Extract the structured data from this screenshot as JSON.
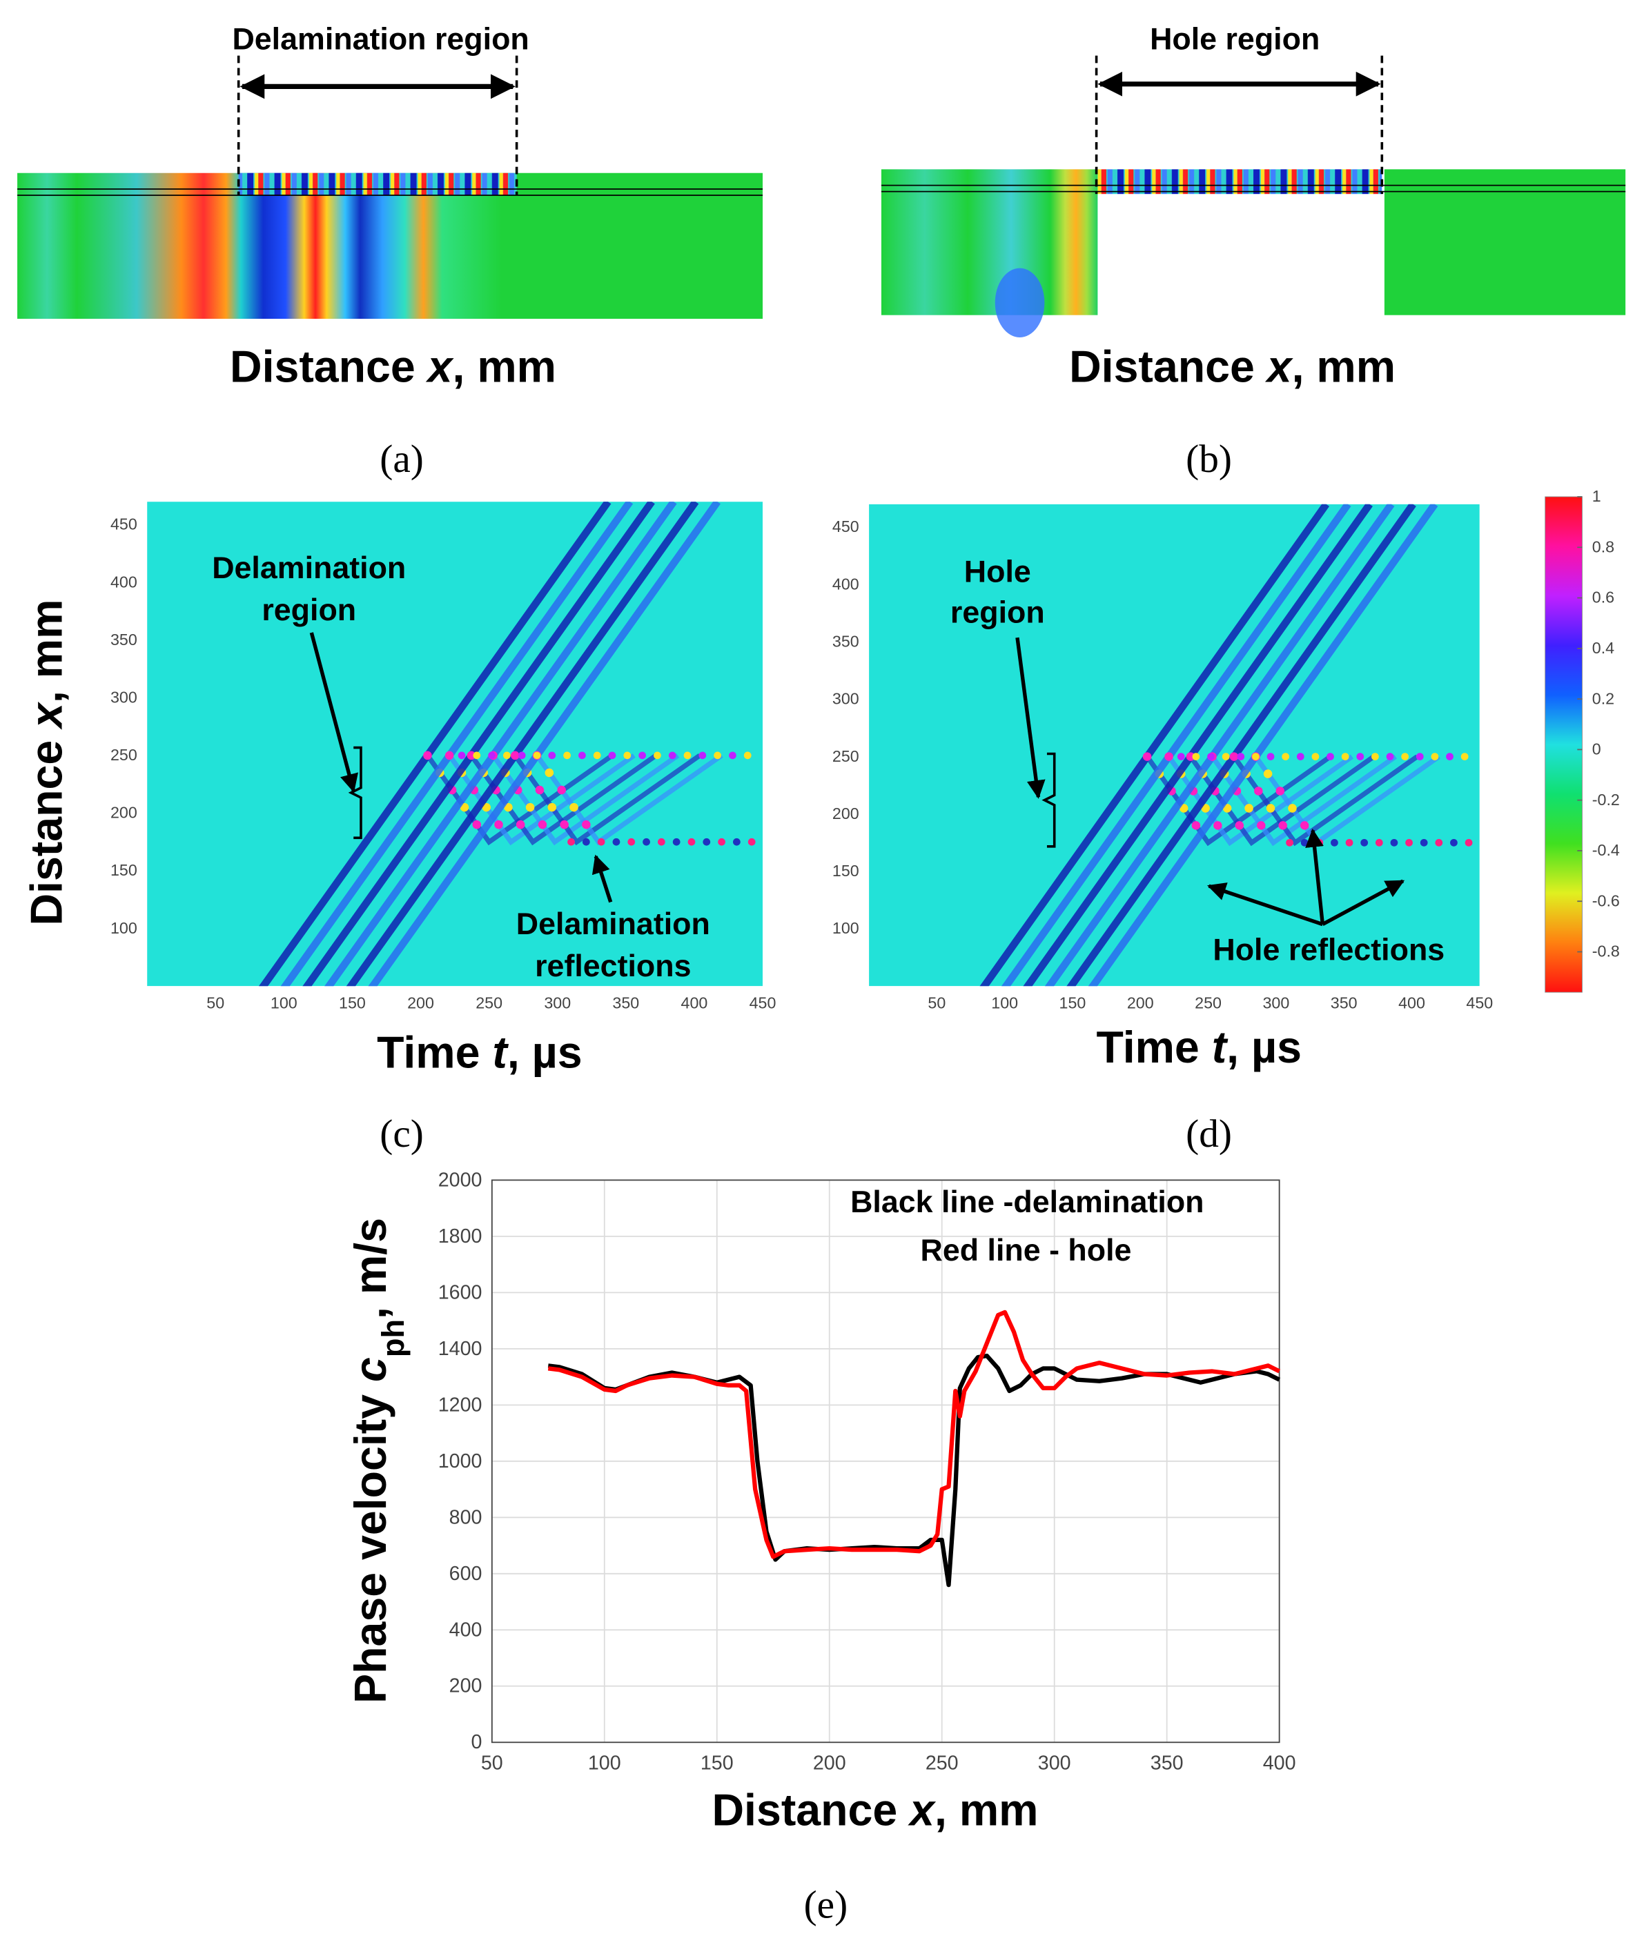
{
  "chart_data": [
    {
      "type": "field",
      "annotation": "Delamination region",
      "xlabel": [
        "Distance ",
        "x",
        ", mm"
      ],
      "panel": "(a)"
    },
    {
      "type": "field",
      "annotation": "Hole region",
      "xlabel": [
        "Distance ",
        "x",
        ", mm"
      ],
      "panel": "(b)"
    },
    {
      "type": "heatmap",
      "xlim": [
        0,
        450
      ],
      "ylim": [
        50,
        470
      ],
      "xticks": [
        50,
        100,
        150,
        200,
        250,
        300,
        350,
        400,
        450
      ],
      "yticks": [
        100,
        150,
        200,
        250,
        300,
        350,
        400,
        450
      ],
      "xlabel": [
        "Time ",
        "t",
        ", µs"
      ],
      "ylabel": [
        "Distance ",
        "x",
        ", mm"
      ],
      "annotations": [
        [
          "Delamination",
          "region"
        ],
        [
          "Delamination",
          "reflections"
        ]
      ],
      "panel": "(c)"
    },
    {
      "type": "heatmap",
      "xlim": [
        0,
        450
      ],
      "ylim": [
        50,
        470
      ],
      "xticks": [
        50,
        100,
        150,
        200,
        250,
        300,
        350,
        400,
        450
      ],
      "yticks": [
        100,
        150,
        200,
        250,
        300,
        350,
        400,
        450
      ],
      "xlabel": [
        "Time ",
        "t",
        ", µs"
      ],
      "ylabel": [],
      "annotations": [
        [
          "Hole",
          "region"
        ],
        [
          "Hole reflections"
        ]
      ],
      "panel": "(d)"
    },
    {
      "type": "colorbar",
      "clim": [
        -0.96,
        1
      ],
      "ticks": [
        1,
        0.8,
        0.6,
        0.4,
        0.2,
        0,
        -0.2,
        -0.4,
        -0.6,
        -0.8
      ]
    },
    {
      "type": "line",
      "xlim": [
        50,
        400
      ],
      "ylim": [
        0,
        2000
      ],
      "xticks": [
        50,
        100,
        150,
        200,
        250,
        300,
        350,
        400
      ],
      "yticks": [
        0,
        200,
        400,
        600,
        800,
        1000,
        1200,
        1400,
        1600,
        1800,
        2000
      ],
      "grid": true,
      "xlabel": [
        "Distance ",
        "x",
        ", mm"
      ],
      "ylabel": [
        "Phase velocity ",
        "c",
        "ph",
        ", m/s"
      ],
      "annotations": [
        "Black line -delamination",
        "Red line - hole"
      ],
      "panel": "(e)",
      "series": [
        {
          "color": "#000000",
          "x": [
            75,
            80,
            90,
            100,
            105,
            110,
            120,
            130,
            140,
            150,
            155,
            160,
            165,
            168,
            172,
            176,
            180,
            190,
            200,
            210,
            220,
            230,
            240,
            245,
            250,
            253,
            256,
            258,
            262,
            266,
            270,
            275,
            280,
            285,
            290,
            295,
            300,
            305,
            310,
            320,
            330,
            340,
            350,
            360,
            365,
            370,
            380,
            390,
            395,
            400
          ],
          "values": [
            1340,
            1335,
            1310,
            1260,
            1255,
            1270,
            1300,
            1315,
            1300,
            1280,
            1290,
            1300,
            1270,
            1000,
            750,
            650,
            680,
            690,
            685,
            690,
            695,
            690,
            690,
            720,
            720,
            560,
            900,
            1260,
            1330,
            1370,
            1375,
            1330,
            1250,
            1270,
            1310,
            1330,
            1330,
            1310,
            1290,
            1285,
            1295,
            1310,
            1310,
            1290,
            1280,
            1290,
            1310,
            1320,
            1310,
            1290
          ]
        },
        {
          "color": "#ff0000",
          "x": [
            75,
            80,
            90,
            100,
            105,
            110,
            120,
            130,
            140,
            150,
            155,
            160,
            163,
            167,
            172,
            175,
            180,
            190,
            200,
            210,
            220,
            230,
            240,
            245,
            248,
            250,
            253,
            256,
            258,
            260,
            265,
            270,
            275,
            278,
            282,
            286,
            290,
            295,
            300,
            305,
            310,
            320,
            330,
            340,
            350,
            360,
            370,
            380,
            390,
            395,
            400
          ],
          "values": [
            1330,
            1325,
            1300,
            1255,
            1250,
            1270,
            1295,
            1305,
            1300,
            1275,
            1270,
            1270,
            1250,
            900,
            720,
            660,
            680,
            685,
            690,
            685,
            685,
            685,
            680,
            700,
            740,
            900,
            910,
            1250,
            1160,
            1250,
            1320,
            1420,
            1520,
            1530,
            1460,
            1360,
            1310,
            1260,
            1260,
            1300,
            1330,
            1350,
            1330,
            1310,
            1305,
            1315,
            1320,
            1310,
            1330,
            1340,
            1320
          ]
        }
      ]
    }
  ]
}
